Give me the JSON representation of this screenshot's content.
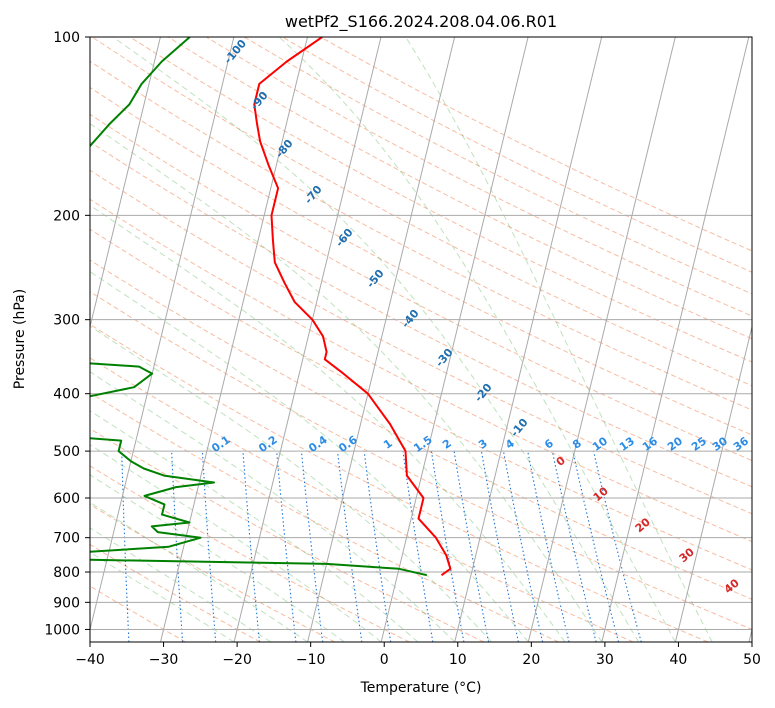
{
  "chart_data": {
    "type": "line",
    "title": "wetPf2_S166.2024.208.04.06.R01",
    "xlabel": "Temperature (°C)",
    "ylabel": "Pressure (hPa)",
    "xlim": [
      -40,
      50
    ],
    "ylim": [
      1050,
      100
    ],
    "y_scale": "log",
    "skew": true,
    "grid": true,
    "x_ticks": [
      -40,
      -30,
      -20,
      -10,
      0,
      10,
      20,
      30,
      40,
      50
    ],
    "y_ticks": [
      100,
      200,
      300,
      400,
      500,
      600,
      700,
      800,
      900,
      1000
    ],
    "series": [
      {
        "color": "#ff0000",
        "x_label": "Temperature (°C)",
        "y_label": "Pressure (hPa)",
        "points": [
          [
            -28,
            100
          ],
          [
            -32,
            110
          ],
          [
            -35,
            120
          ],
          [
            -35,
            130
          ],
          [
            -34,
            140
          ],
          [
            -33,
            150
          ],
          [
            -31,
            165
          ],
          [
            -29,
            180
          ],
          [
            -29,
            200
          ],
          [
            -28,
            220
          ],
          [
            -27,
            240
          ],
          [
            -25,
            260
          ],
          [
            -23,
            280
          ],
          [
            -20,
            300
          ],
          [
            -18,
            320
          ],
          [
            -17,
            340
          ],
          [
            -17,
            350
          ],
          [
            -14,
            370
          ],
          [
            -10,
            400
          ],
          [
            -6,
            450
          ],
          [
            -3,
            500
          ],
          [
            -2,
            550
          ],
          [
            1,
            600
          ],
          [
            1,
            650
          ],
          [
            4,
            700
          ],
          [
            6,
            750
          ],
          [
            7,
            790
          ],
          [
            6,
            810
          ]
        ]
      },
      {
        "color": "#008000",
        "x_label": "Temperature (°C)",
        "y_label": "Pressure (hPa)",
        "points": [
          [
            -46,
            100
          ],
          [
            -49,
            110
          ],
          [
            -51,
            120
          ],
          [
            -52,
            130
          ],
          [
            -54,
            140
          ],
          [
            -57,
            160
          ],
          [
            -61,
            180
          ],
          [
            -63,
            190
          ],
          [
            -63,
            195
          ],
          [
            -57,
            205
          ],
          [
            -54,
            215
          ],
          [
            -55,
            235
          ],
          [
            -54,
            250
          ],
          [
            -53,
            265
          ],
          [
            -51,
            280
          ],
          [
            -57,
            290
          ],
          [
            -70,
            300
          ],
          [
            -78,
            325
          ],
          [
            -77,
            345
          ],
          [
            -60,
            348
          ],
          [
            -42,
            360
          ],
          [
            -40,
            370
          ],
          [
            -42,
            390
          ],
          [
            -54,
            420
          ],
          [
            -64,
            450
          ],
          [
            -61,
            460
          ],
          [
            -52,
            470
          ],
          [
            -42,
            480
          ],
          [
            -42,
            500
          ],
          [
            -40,
            520
          ],
          [
            -38,
            535
          ],
          [
            -35,
            550
          ],
          [
            -28,
            565
          ],
          [
            -33,
            575
          ],
          [
            -37,
            595
          ],
          [
            -34,
            615
          ],
          [
            -34,
            640
          ],
          [
            -30,
            660
          ],
          [
            -35,
            670
          ],
          [
            -34,
            685
          ],
          [
            -28,
            700
          ],
          [
            -32,
            725
          ],
          [
            -50,
            750
          ],
          [
            -85,
            755
          ],
          [
            -50,
            760
          ],
          [
            -10,
            775
          ],
          [
            0,
            790
          ],
          [
            4,
            810
          ]
        ]
      }
    ],
    "mixing_ratio_labels": [
      "0.1",
      "0.2",
      "0.4",
      "0.6",
      "1",
      "1.5",
      "2",
      "3",
      "4",
      "6",
      "8",
      "10",
      "13",
      "16",
      "20",
      "25",
      "30",
      "36"
    ],
    "dry_adiabat_labels": [
      "-100",
      "-90",
      "-80",
      "-70",
      "-60",
      "-50",
      "-40",
      "-30",
      "-20",
      "-10"
    ],
    "moist_adiabat_labels": [
      "0",
      "10",
      "20",
      "30",
      "40"
    ]
  }
}
